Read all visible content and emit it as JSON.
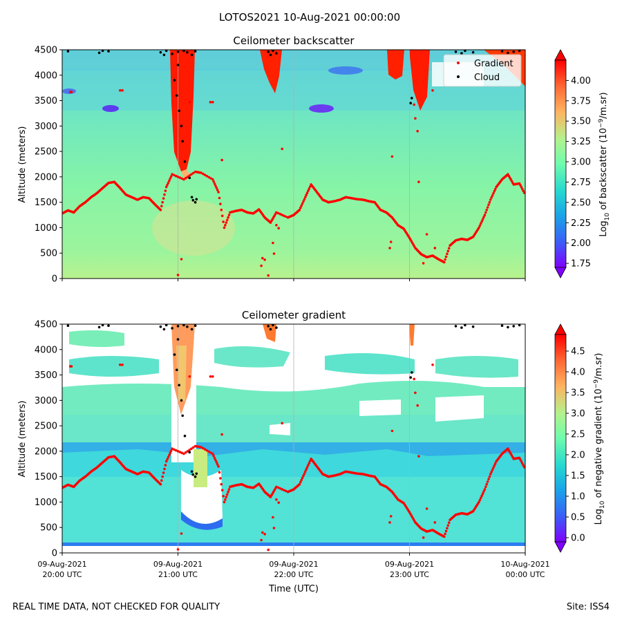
{
  "suptitle": "LOTOS2021 10-Aug-2021 00:00:00",
  "footer_left": "REAL TIME DATA, NOT CHECKED FOR QUALITY",
  "footer_right": "Site: ISS4",
  "xlabel": "Time (UTC)",
  "x_ticks": [
    {
      "date": "09-Aug-2021",
      "time": "20:00 UTC",
      "hour": 20
    },
    {
      "date": "09-Aug-2021",
      "time": "21:00 UTC",
      "hour": 21
    },
    {
      "date": "09-Aug-2021",
      "time": "22:00 UTC",
      "hour": 22
    },
    {
      "date": "09-Aug-2021",
      "time": "23:00 UTC",
      "hour": 23
    },
    {
      "date": "10-Aug-2021",
      "time": "00:00 UTC",
      "hour": 24
    }
  ],
  "legend": {
    "gradient": "Gradient",
    "cloud": "Cloud"
  },
  "colors": {
    "gradient_marker": "#ff0000",
    "cloud_marker": "#000000",
    "gridline": "#b0b0b0"
  },
  "chart_data": [
    {
      "type": "heatmap",
      "title": "Ceilometer backscatter",
      "ylabel": "Altitude (meters)",
      "xlim_hours": [
        20,
        24
      ],
      "ylim": [
        0,
        4500
      ],
      "y_ticks": [
        "0",
        "500",
        "1000",
        "1500",
        "2000",
        "2500",
        "3000",
        "3500",
        "4000",
        "4500"
      ],
      "colorbar": {
        "label": "Log10 of backscatter (10^-9/m.sr)",
        "label_main": "Log",
        "label_sub": "10",
        "label_mid": " of backscatter (10",
        "label_sup": "−9",
        "label_end": "/m.sr)",
        "range": [
          1.7,
          4.25
        ],
        "ticks": [
          "1.75",
          "2.00",
          "2.25",
          "2.50",
          "2.75",
          "3.00",
          "3.25",
          "3.50",
          "3.75",
          "4.00"
        ]
      },
      "series": [
        {
          "name": "Gradient"
        },
        {
          "name": "Cloud"
        }
      ]
    },
    {
      "type": "heatmap",
      "title": "Ceilometer gradient",
      "ylabel": "Altitude (meters)",
      "xlim_hours": [
        20,
        24
      ],
      "ylim": [
        0,
        4500
      ],
      "y_ticks": [
        "0",
        "500",
        "1000",
        "1500",
        "2000",
        "2500",
        "3000",
        "3500",
        "4000",
        "4500"
      ],
      "colorbar": {
        "label": "Log10 of negative gradient (10^-9/m.sr)",
        "label_main": "Log",
        "label_sub": "10",
        "label_mid": " of negative gradient (10",
        "label_sup": "−9",
        "label_end": "/m.sr)",
        "range": [
          -0.1,
          4.9
        ],
        "ticks": [
          "0.0",
          "0.5",
          "1.0",
          "1.5",
          "2.0",
          "2.5",
          "3.0",
          "3.5",
          "4.0",
          "4.5"
        ]
      }
    }
  ],
  "gradient_series": {
    "hours": [
      20.0,
      20.05,
      20.1,
      20.15,
      20.2,
      20.25,
      20.3,
      20.35,
      20.4,
      20.45,
      20.5,
      20.55,
      20.6,
      20.65,
      20.7,
      20.75,
      20.8,
      20.85,
      20.9,
      20.95,
      21.05,
      21.15,
      21.2,
      21.3,
      21.35,
      21.4,
      21.45,
      21.5,
      21.55,
      21.6,
      21.65,
      21.7,
      21.75,
      21.8,
      21.85,
      21.95,
      22.0,
      22.05,
      22.1,
      22.15,
      22.2,
      22.25,
      22.3,
      22.35,
      22.4,
      22.45,
      22.5,
      22.55,
      22.6,
      22.65,
      22.7,
      22.75,
      22.8,
      22.85,
      22.9,
      22.95,
      23.0,
      23.05,
      23.1,
      23.15,
      23.2,
      23.25,
      23.3,
      23.35,
      23.4,
      23.45,
      23.5,
      23.55,
      23.6,
      23.65,
      23.7,
      23.75,
      23.8,
      23.85,
      23.9,
      23.95,
      24.0
    ],
    "altitudes": [
      1280,
      1340,
      1300,
      1420,
      1500,
      1600,
      1680,
      1780,
      1880,
      1900,
      1780,
      1650,
      1600,
      1550,
      1600,
      1580,
      1460,
      1350,
      1800,
      2050,
      1950,
      2100,
      2080,
      1950,
      1700,
      1000,
      1300,
      1330,
      1350,
      1300,
      1280,
      1360,
      1200,
      1100,
      1300,
      1200,
      1250,
      1350,
      1600,
      1850,
      1700,
      1550,
      1500,
      1520,
      1550,
      1600,
      1580,
      1560,
      1550,
      1520,
      1500,
      1350,
      1300,
      1200,
      1050,
      980,
      800,
      600,
      480,
      420,
      450,
      380,
      320,
      650,
      750,
      780,
      760,
      820,
      1000,
      1250,
      1550,
      1800,
      1950,
      2050,
      1850,
      1870,
      1650
    ]
  },
  "gradient_scatter": [
    {
      "h": 21.0,
      "alt": 70
    },
    {
      "h": 21.03,
      "alt": 380
    },
    {
      "h": 21.38,
      "alt": 2330
    },
    {
      "h": 21.72,
      "alt": 250
    },
    {
      "h": 21.73,
      "alt": 400
    },
    {
      "h": 21.75,
      "alt": 370
    },
    {
      "h": 21.78,
      "alt": 60
    },
    {
      "h": 21.82,
      "alt": 700
    },
    {
      "h": 21.83,
      "alt": 490
    },
    {
      "h": 21.85,
      "alt": 1050
    },
    {
      "h": 21.87,
      "alt": 990
    },
    {
      "h": 21.9,
      "alt": 2550
    },
    {
      "h": 22.85,
      "alt": 2400
    },
    {
      "h": 22.83,
      "alt": 600
    },
    {
      "h": 22.84,
      "alt": 720
    },
    {
      "h": 23.12,
      "alt": 300
    },
    {
      "h": 23.15,
      "alt": 870
    },
    {
      "h": 23.08,
      "alt": 1900
    },
    {
      "h": 23.07,
      "alt": 2900
    },
    {
      "h": 23.05,
      "alt": 3150
    },
    {
      "h": 23.04,
      "alt": 3420
    },
    {
      "h": 23.2,
      "alt": 3700
    },
    {
      "h": 23.22,
      "alt": 600
    },
    {
      "h": 21.1,
      "alt": 3470
    },
    {
      "h": 21.28,
      "alt": 3470
    },
    {
      "h": 21.3,
      "alt": 3470
    },
    {
      "h": 20.5,
      "alt": 3700
    },
    {
      "h": 20.52,
      "alt": 3700
    },
    {
      "h": 20.07,
      "alt": 3670
    },
    {
      "h": 20.08,
      "alt": 3670
    }
  ],
  "cloud_points": [
    {
      "h": 20.85,
      "alt": 4450
    },
    {
      "h": 20.88,
      "alt": 4400
    },
    {
      "h": 20.9,
      "alt": 4480
    },
    {
      "h": 20.95,
      "alt": 4420
    },
    {
      "h": 21.0,
      "alt": 4460
    },
    {
      "h": 21.05,
      "alt": 4480
    },
    {
      "h": 21.08,
      "alt": 4450
    },
    {
      "h": 21.12,
      "alt": 4400
    },
    {
      "h": 21.15,
      "alt": 4470
    },
    {
      "h": 21.0,
      "alt": 4200
    },
    {
      "h": 20.97,
      "alt": 3900
    },
    {
      "h": 20.99,
      "alt": 3600
    },
    {
      "h": 21.01,
      "alt": 3300
    },
    {
      "h": 21.03,
      "alt": 3000
    },
    {
      "h": 21.04,
      "alt": 2700
    },
    {
      "h": 21.06,
      "alt": 2300
    },
    {
      "h": 21.1,
      "alt": 1980
    },
    {
      "h": 21.12,
      "alt": 1600
    },
    {
      "h": 21.13,
      "alt": 1540
    },
    {
      "h": 21.15,
      "alt": 1500
    },
    {
      "h": 21.16,
      "alt": 1560
    },
    {
      "h": 21.78,
      "alt": 4460
    },
    {
      "h": 21.8,
      "alt": 4400
    },
    {
      "h": 21.82,
      "alt": 4480
    },
    {
      "h": 21.85,
      "alt": 4430
    },
    {
      "h": 20.35,
      "alt": 4480
    },
    {
      "h": 20.32,
      "alt": 4440
    },
    {
      "h": 20.4,
      "alt": 4470
    },
    {
      "h": 20.05,
      "alt": 4470
    },
    {
      "h": 23.4,
      "alt": 4460
    },
    {
      "h": 23.45,
      "alt": 4430
    },
    {
      "h": 23.48,
      "alt": 4480
    },
    {
      "h": 23.55,
      "alt": 4450
    },
    {
      "h": 23.8,
      "alt": 4470
    },
    {
      "h": 23.85,
      "alt": 4440
    },
    {
      "h": 23.9,
      "alt": 4460
    },
    {
      "h": 23.95,
      "alt": 4480
    },
    {
      "h": 23.02,
      "alt": 3550
    },
    {
      "h": 23.01,
      "alt": 3450
    }
  ]
}
